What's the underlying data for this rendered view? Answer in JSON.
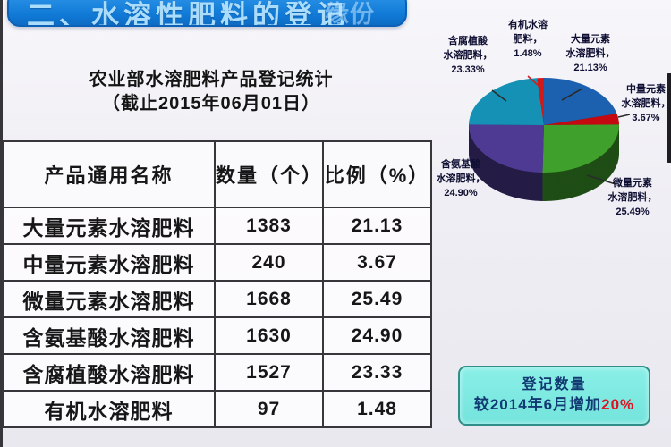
{
  "banner": {
    "title": "二、水溶性肥料的登记",
    "watermark": "缘份"
  },
  "title": {
    "line1": "农业部水溶肥料产品登记统计",
    "line2": "（截止2015年06月01日）"
  },
  "table": {
    "headers": [
      "产品通用名称",
      "数量（个）",
      "比例（%）"
    ],
    "rows": [
      [
        "大量元素水溶肥料",
        "1383",
        "21.13"
      ],
      [
        "中量元素水溶肥料",
        "240",
        "3.67"
      ],
      [
        "微量元素水溶肥料",
        "1668",
        "25.49"
      ],
      [
        "含氨基酸水溶肥料",
        "1630",
        "24.90"
      ],
      [
        "含腐植酸水溶肥料",
        "1527",
        "23.33"
      ],
      [
        "有机水溶肥料",
        "97",
        "1.48"
      ]
    ]
  },
  "chart_data": {
    "type": "pie",
    "style": "3d",
    "title": "农业部水溶肥料产品登记统计（截止2015年06月01日）",
    "start_angle_deg": 0,
    "direction": "clockwise",
    "slices": [
      {
        "name": "大量元素水溶肥料",
        "value": 1383,
        "pct": 21.13,
        "color": "#1c60b0",
        "label_lines": [
          "大量元素",
          "水溶肥料，",
          "21.13%"
        ]
      },
      {
        "name": "中量元素水溶肥料",
        "value": 240,
        "pct": 3.67,
        "color": "#c40a10",
        "label_lines": [
          "中量元素",
          "水溶肥料，",
          "3.67%"
        ]
      },
      {
        "name": "微量元素水溶肥料",
        "value": 1668,
        "pct": 25.49,
        "color": "#3fa02c",
        "label_lines": [
          "微量元素",
          "水溶肥料，",
          "25.49%"
        ]
      },
      {
        "name": "含氨基酸水溶肥料",
        "value": 1630,
        "pct": 24.9,
        "color": "#4e3a92",
        "label_lines": [
          "含氨基酸",
          "水溶肥料，",
          "24.90%"
        ]
      },
      {
        "name": "含腐植酸水溶肥料",
        "value": 1527,
        "pct": 23.33,
        "color": "#1691b6",
        "label_lines": [
          "含腐植酸",
          "水溶肥料，",
          "23.33%"
        ]
      },
      {
        "name": "有机水溶肥料",
        "value": 97,
        "pct": 1.48,
        "color": "#d41818",
        "label_lines": [
          "有机水溶",
          "肥料，",
          "1.48%"
        ]
      }
    ]
  },
  "callout": {
    "line1": "登记数量",
    "line2_prefix": "较2014年6月增加",
    "line2_highlight": "20%",
    "bg_color": "#7ce9e1",
    "highlight_color": "#e01222"
  }
}
